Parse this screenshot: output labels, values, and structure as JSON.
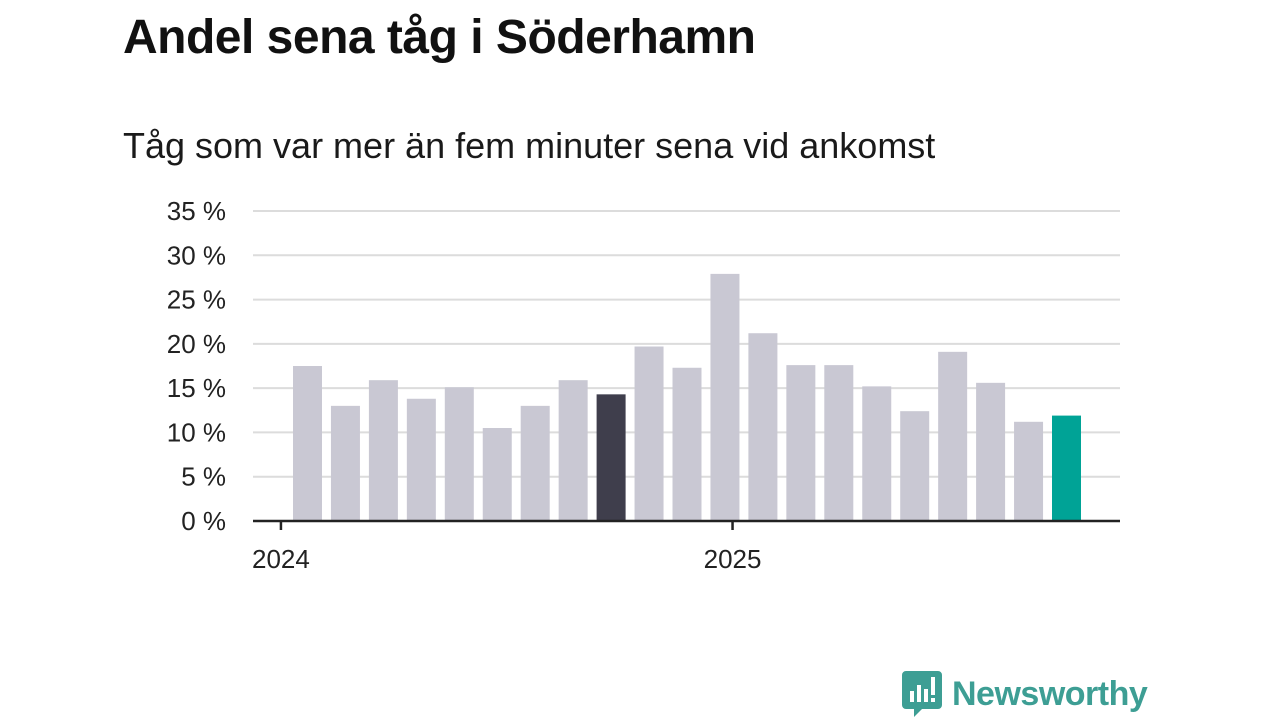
{
  "title": "Andel sena tåg i Söderhamn",
  "subtitle": "Tåg som var mer än fem minuter sena vid ankomst",
  "brand": "Newsworthy",
  "colors": {
    "bar": "#c9c8d3",
    "highlight_dark": "#3f3e4c",
    "highlight_teal": "#00a396",
    "grid": "#dcdcdc",
    "axis": "#222222",
    "brand": "#3d9e94"
  },
  "chart_data": {
    "type": "bar",
    "values": [
      17.5,
      13.0,
      15.9,
      13.8,
      15.1,
      10.5,
      13.0,
      15.9,
      14.3,
      19.7,
      17.3,
      27.9,
      21.2,
      17.6,
      17.6,
      15.2,
      12.4,
      19.1,
      15.6,
      11.2,
      11.9
    ],
    "highlight": {
      "8": "dark",
      "20": "teal"
    },
    "ylim": [
      0,
      35
    ],
    "y_ticks": [
      {
        "value": 0,
        "label": "0 %"
      },
      {
        "value": 5,
        "label": "5 %"
      },
      {
        "value": 10,
        "label": "10 %"
      },
      {
        "value": 15,
        "label": "15 %"
      },
      {
        "value": 20,
        "label": "20 %"
      },
      {
        "value": 25,
        "label": "25 %"
      },
      {
        "value": 30,
        "label": "30 %"
      },
      {
        "value": 35,
        "label": "35 %"
      }
    ],
    "x_ticks": [
      {
        "label": "2024",
        "bar_offset": -0.7
      },
      {
        "label": "2025",
        "bar_offset": 11.2
      }
    ],
    "grid": true,
    "legend": "none"
  }
}
